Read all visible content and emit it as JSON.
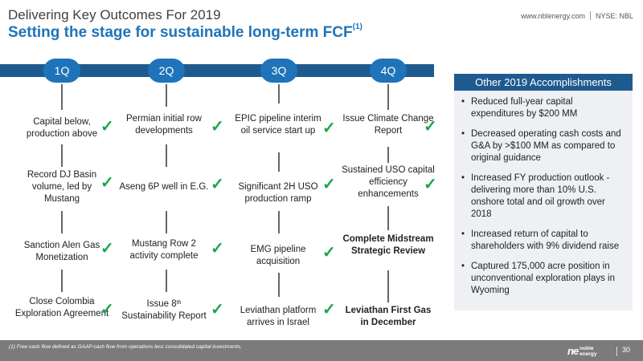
{
  "header": {
    "title": "Delivering Key Outcomes For 2019",
    "subtitle": "Setting the stage for sustainable long-term FCF",
    "subtitle_sup": "(1)",
    "website": "www.nblenergy.com",
    "ticker": "NYSE: NBL"
  },
  "quarters": [
    "1Q",
    "2Q",
    "3Q",
    "4Q"
  ],
  "milestones": {
    "q1": {
      "r1": "Capital below, production above",
      "r2": "Record DJ Basin volume, led by Mustang",
      "r3": "Sanction Alen Gas Monetization",
      "r4": "Close Colombia Exploration Agreement"
    },
    "q2": {
      "r1": "Permian initial row developments",
      "r2": "Aseng 6P well in E.G.",
      "r3": "Mustang Row 2 activity complete",
      "r4_a": "Issue 8",
      "r4_sup": "th",
      "r4_b": "Sustainability Report"
    },
    "q3": {
      "r1": "EPIC pipeline interim oil service start up",
      "r2": "Significant 2H USO production ramp",
      "r3": "EMG pipeline acquisition",
      "r4": "Leviathan platform arrives in Israel"
    },
    "q4": {
      "r1": "Issue Climate Change Report",
      "r2": "Sustained USO capital efficiency enhancements",
      "r3": "Complete Midstream Strategic Review",
      "r4": "Leviathan First Gas in December"
    }
  },
  "check_glyph": "✓",
  "panel": {
    "title": "Other 2019 Accomplishments",
    "items": [
      "Reduced full-year capital expenditures by $200 MM",
      "Decreased operating cash costs and G&A by >$100 MM as compared to original guidance",
      "Increased FY production outlook - delivering more than 10% U.S. onshore total and oil growth over 2018",
      "Increased return of capital to shareholders with 9% dividend raise",
      "Captured 175,000 acre position in unconventional exploration plays in Wyoming"
    ]
  },
  "footer": {
    "footnote": "(1)    Free cash flow defined as GAAP cash flow from operations less consolidated capital investments.",
    "logo_mark": "ne",
    "logo_line1": "noble",
    "logo_line2": "energy",
    "page_number": "30"
  },
  "colors": {
    "accent_blue": "#1f74b9",
    "dark_blue": "#1f5a8f",
    "check_green": "#1aa64a",
    "footer_gray": "#7b7b7b"
  }
}
